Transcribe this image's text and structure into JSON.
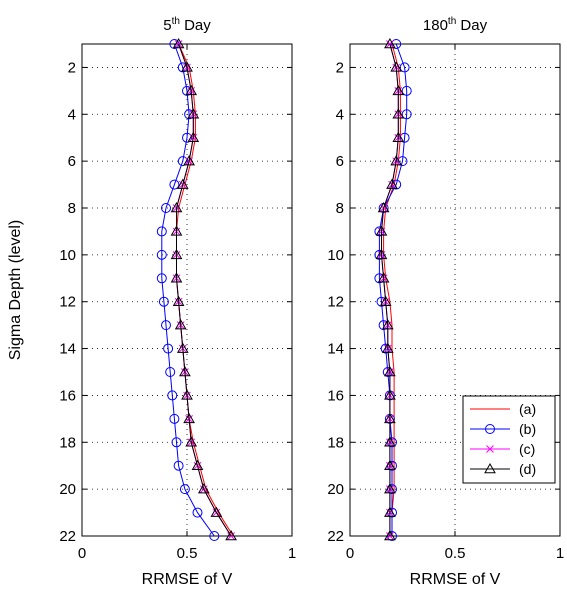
{
  "figure": {
    "ylabel": "Sigma Depth (level)",
    "xlabel": "RRMSE of V"
  },
  "legend": {
    "placement": "lower-right of second panel",
    "entries": [
      {
        "label": "(a)",
        "color": "#ff0000",
        "marker": "none"
      },
      {
        "label": "(b)",
        "color": "#0000ff",
        "marker": "circle"
      },
      {
        "label": "(c)",
        "color": "#ff00ff",
        "marker": "x"
      },
      {
        "label": "(d)",
        "color": "#000000",
        "marker": "triangle"
      }
    ]
  },
  "chart_data": [
    {
      "type": "line",
      "title": "5",
      "title_sup": "th",
      "title_rest": " Day",
      "xlabel": "RRMSE of V",
      "ylabel": "Sigma Depth (level)",
      "xlim": [
        0,
        1
      ],
      "ylim": [
        1,
        22
      ],
      "y_reversed": true,
      "grid": true,
      "xticks": [
        "0",
        "0.5",
        "1"
      ],
      "yticks": [
        "2",
        "4",
        "6",
        "8",
        "10",
        "12",
        "14",
        "16",
        "18",
        "20",
        "22"
      ],
      "x_tick_values": [
        0,
        0.5,
        1
      ],
      "y_tick_values": [
        2,
        4,
        6,
        8,
        10,
        12,
        14,
        16,
        18,
        20,
        22
      ],
      "levels": [
        1,
        2,
        3,
        4,
        5,
        6,
        7,
        8,
        9,
        10,
        11,
        12,
        13,
        14,
        15,
        16,
        17,
        18,
        19,
        20,
        21,
        22
      ],
      "series": [
        {
          "name": "(a)",
          "values": [
            0.46,
            0.51,
            0.53,
            0.54,
            0.54,
            0.52,
            0.49,
            0.46,
            0.45,
            0.45,
            0.45,
            0.46,
            0.47,
            0.48,
            0.49,
            0.5,
            0.51,
            0.53,
            0.56,
            0.59,
            0.65,
            0.72
          ]
        },
        {
          "name": "(b)",
          "values": [
            0.44,
            0.48,
            0.5,
            0.51,
            0.5,
            0.48,
            0.44,
            0.4,
            0.38,
            0.38,
            0.38,
            0.39,
            0.4,
            0.41,
            0.42,
            0.43,
            0.44,
            0.45,
            0.46,
            0.49,
            0.55,
            0.63
          ]
        },
        {
          "name": "(c)",
          "values": [
            0.46,
            0.5,
            0.52,
            0.53,
            0.53,
            0.51,
            0.48,
            0.45,
            0.45,
            0.45,
            0.45,
            0.46,
            0.47,
            0.48,
            0.49,
            0.5,
            0.51,
            0.52,
            0.55,
            0.58,
            0.64,
            0.71
          ]
        },
        {
          "name": "(d)",
          "values": [
            0.46,
            0.5,
            0.52,
            0.53,
            0.53,
            0.51,
            0.48,
            0.45,
            0.45,
            0.45,
            0.45,
            0.46,
            0.47,
            0.48,
            0.49,
            0.5,
            0.51,
            0.52,
            0.55,
            0.58,
            0.64,
            0.71
          ]
        }
      ]
    },
    {
      "type": "line",
      "title": "180",
      "title_sup": "th",
      "title_rest": " Day",
      "xlabel": "RRMSE of V",
      "ylabel": "",
      "xlim": [
        0,
        1
      ],
      "ylim": [
        1,
        22
      ],
      "y_reversed": true,
      "grid": true,
      "xticks": [
        "0",
        "0.5",
        "1"
      ],
      "yticks": [
        "2",
        "4",
        "6",
        "8",
        "10",
        "12",
        "14",
        "16",
        "18",
        "20",
        "22"
      ],
      "x_tick_values": [
        0,
        0.5,
        1
      ],
      "y_tick_values": [
        2,
        4,
        6,
        8,
        10,
        12,
        14,
        16,
        18,
        20,
        22
      ],
      "levels": [
        1,
        2,
        3,
        4,
        5,
        6,
        7,
        8,
        9,
        10,
        11,
        12,
        13,
        14,
        15,
        16,
        17,
        18,
        19,
        20,
        21,
        22
      ],
      "series": [
        {
          "name": "(a)",
          "values": [
            0.2,
            0.23,
            0.24,
            0.24,
            0.24,
            0.23,
            0.21,
            0.17,
            0.16,
            0.16,
            0.17,
            0.19,
            0.2,
            0.2,
            0.21,
            0.21,
            0.21,
            0.21,
            0.21,
            0.21,
            0.2,
            0.2
          ]
        },
        {
          "name": "(b)",
          "values": [
            0.22,
            0.26,
            0.27,
            0.27,
            0.26,
            0.25,
            0.22,
            0.16,
            0.14,
            0.14,
            0.14,
            0.15,
            0.16,
            0.17,
            0.18,
            0.19,
            0.19,
            0.2,
            0.2,
            0.2,
            0.2,
            0.2
          ]
        },
        {
          "name": "(c)",
          "values": [
            0.19,
            0.22,
            0.23,
            0.23,
            0.23,
            0.22,
            0.2,
            0.16,
            0.15,
            0.15,
            0.16,
            0.17,
            0.18,
            0.18,
            0.19,
            0.19,
            0.19,
            0.19,
            0.19,
            0.19,
            0.19,
            0.19
          ]
        },
        {
          "name": "(d)",
          "values": [
            0.19,
            0.22,
            0.23,
            0.23,
            0.23,
            0.22,
            0.2,
            0.16,
            0.15,
            0.15,
            0.16,
            0.17,
            0.18,
            0.18,
            0.19,
            0.19,
            0.19,
            0.19,
            0.19,
            0.19,
            0.19,
            0.19
          ]
        }
      ]
    }
  ]
}
